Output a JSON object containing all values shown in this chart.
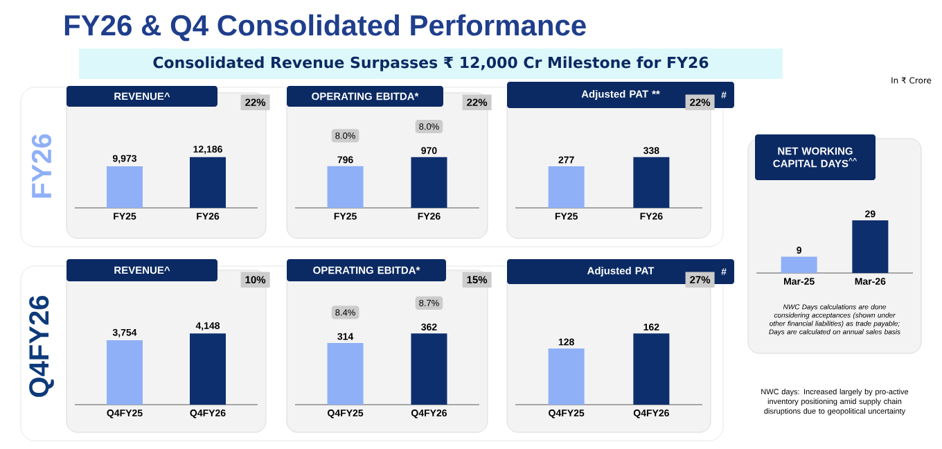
{
  "chart_data": [
    {
      "type": "other",
      "title": "FY26 & Q4 Consolidated Performance",
      "subtitle": "Consolidated Revenue Surpasses ₹ 12,000 Cr Milestone for FY26",
      "annotations": [
        "In ₹ Crore"
      ]
    },
    {
      "type": "bar",
      "title": "REVENUE^",
      "ylabel": "FY26",
      "categories": [
        "FY25",
        "FY26"
      ],
      "values": [
        9973,
        12186
      ],
      "value_labels": [
        "9,973",
        "12,186"
      ],
      "colors": [
        "#8fb0f7",
        "#0d2f6e"
      ],
      "annotations": [
        "22%"
      ]
    },
    {
      "type": "bar",
      "title": "OPERATING EBITDA*",
      "categories": [
        "FY25",
        "FY26"
      ],
      "values": [
        796,
        970
      ],
      "value_labels": [
        "796",
        "970"
      ],
      "colors": [
        "#8fb0f7",
        "#0d2f6e"
      ],
      "annotations": [
        "22%",
        "8.0%",
        "8.0%"
      ]
    },
    {
      "type": "bar",
      "title": "Adjusted PAT **",
      "categories": [
        "FY25",
        "FY26"
      ],
      "values": [
        277,
        338
      ],
      "value_labels": [
        "277",
        "338"
      ],
      "colors": [
        "#8fb0f7",
        "#0d2f6e"
      ],
      "annotations": [
        "22%",
        "#"
      ]
    },
    {
      "type": "bar",
      "title": "REVENUE^",
      "ylabel": "Q4FY26",
      "categories": [
        "Q4FY25",
        "Q4FY26"
      ],
      "values": [
        3754,
        4148
      ],
      "value_labels": [
        "3,754",
        "4,148"
      ],
      "colors": [
        "#8fb0f7",
        "#0d2f6e"
      ],
      "annotations": [
        "10%"
      ]
    },
    {
      "type": "bar",
      "title": "OPERATING EBITDA*",
      "categories": [
        "Q4FY25",
        "Q4FY26"
      ],
      "values": [
        314,
        362
      ],
      "value_labels": [
        "314",
        "362"
      ],
      "colors": [
        "#8fb0f7",
        "#0d2f6e"
      ],
      "annotations": [
        "15%",
        "8.4%",
        "8.7%"
      ]
    },
    {
      "type": "bar",
      "title": "Adjusted PAT",
      "categories": [
        "Q4FY25",
        "Q4FY26"
      ],
      "values": [
        128,
        162
      ],
      "value_labels": [
        "128",
        "162"
      ],
      "colors": [
        "#8fb0f7",
        "#0d2f6e"
      ],
      "annotations": [
        "27%",
        "#"
      ]
    },
    {
      "type": "bar",
      "title": "NET WORKING CAPITAL DAYS$^{^^}$",
      "categories": [
        "Mar-25",
        "Mar-26"
      ],
      "values": [
        9,
        29
      ],
      "value_labels": [
        "9",
        "29"
      ],
      "colors": [
        "#8fb0f7",
        "#0d2f6e"
      ],
      "annotations": [
        "NWC Days calculations are done considering acceptances (shown under other financial liabilities) as trade payable; Days are calculated on annual sales basis",
        "NWC days: Increased largely by pro-active inventory positioning amid supply chain disruptions due to geopolitical uncertainty"
      ]
    }
  ]
}
